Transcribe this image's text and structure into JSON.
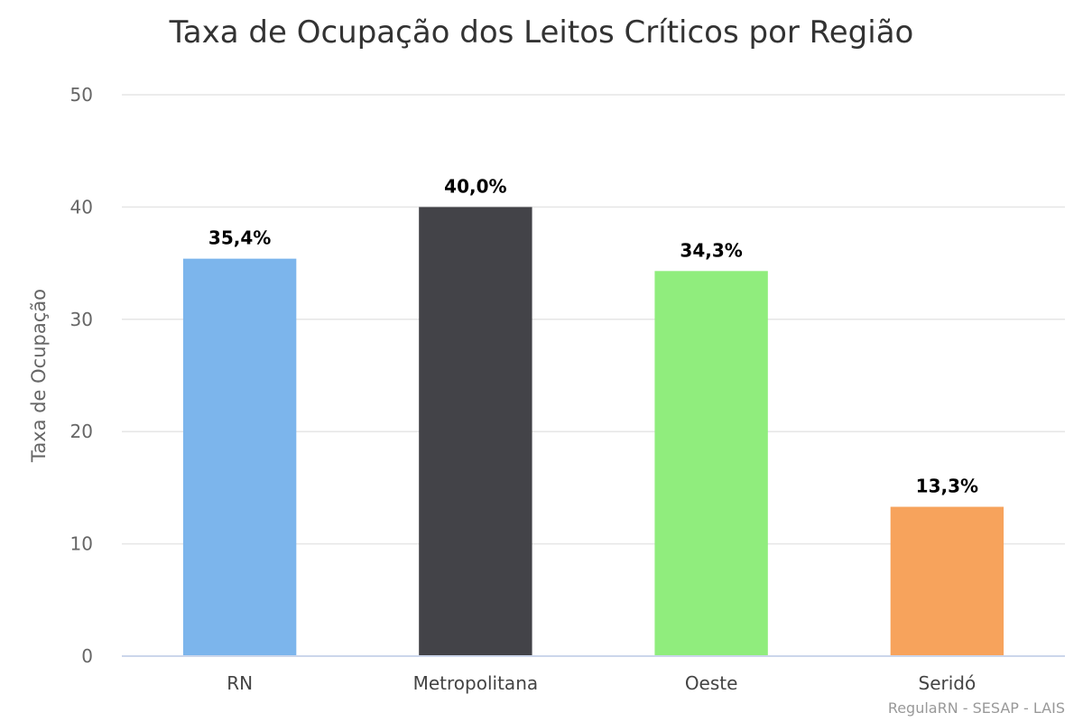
{
  "chart_data": {
    "type": "bar",
    "title": "Taxa de Ocupação dos Leitos Críticos por Região",
    "ylabel": "Taxa de Ocupação",
    "xlabel": "",
    "categories": [
      "RN",
      "Metropolitana",
      "Oeste",
      "Seridó"
    ],
    "values": [
      35.4,
      40.0,
      34.3,
      13.3
    ],
    "data_labels": [
      "35,4%",
      "40,0%",
      "34,3%",
      "13,3%"
    ],
    "colors": [
      "#7cb5ec",
      "#434348",
      "#90ed7d",
      "#f7a35c"
    ],
    "ylim": [
      0,
      50
    ],
    "yticks": [
      0,
      10,
      20,
      30,
      40,
      50
    ],
    "grid": true,
    "legend": "none"
  },
  "credits": "RegulaRN - SESAP - LAIS"
}
